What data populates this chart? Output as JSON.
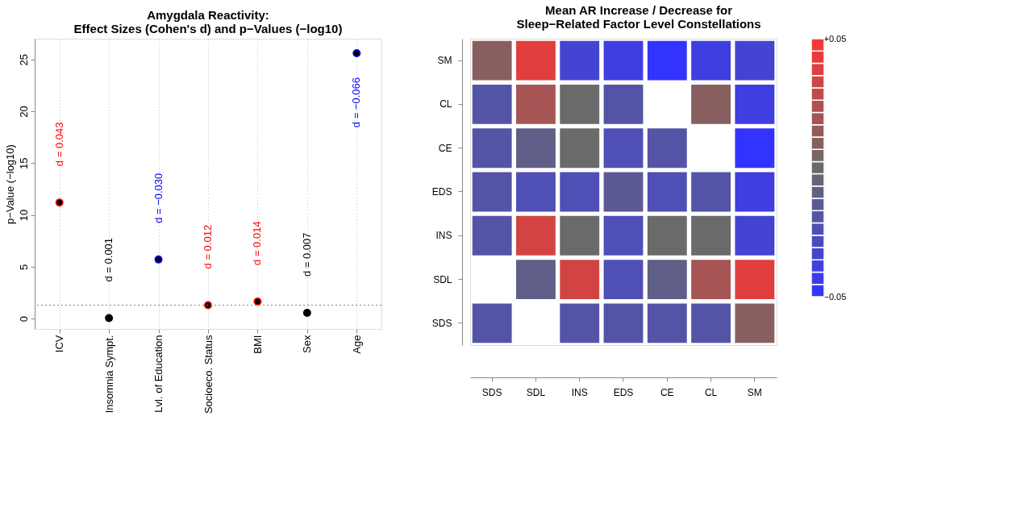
{
  "chart_data": [
    {
      "type": "scatter",
      "title": "Amygdala Reactivity:\nEffect Sizes (Cohen's d) and p−Values (−log10)",
      "ylabel": "p−Value (−log10)",
      "categories": [
        "ICV",
        "Insomnia Sympt.",
        "Lvl. of Education",
        "Socioeco. Status",
        "BMI",
        "Sex",
        "Age"
      ],
      "values": [
        11.2,
        0.05,
        5.7,
        1.3,
        1.65,
        0.55,
        25.6
      ],
      "colors": [
        "#ff0000",
        "#000000",
        "#0000ff",
        "#ff0000",
        "#ff0000",
        "#000000",
        "#0000ff"
      ],
      "ylim": [
        -1,
        27
      ],
      "yticks": [
        0,
        5,
        10,
        15,
        20,
        25
      ],
      "grid": "x",
      "marker": "circle",
      "ref_lines": [
        {
          "axis": "y",
          "value": 1.3,
          "color": "#808080",
          "line_style": "dotted"
        }
      ],
      "annotations": [
        "d =  0.043",
        "d =  0.001",
        "d =  −0.030",
        "d =  0.012",
        "d =  0.014",
        "d =  0.007",
        "d =  −0.066"
      ]
    },
    {
      "type": "heatmap",
      "title": "Mean AR Increase / Decrease for\nSleep−Related Factor Level Constellations",
      "categories": [
        "SDS",
        "SDL",
        "INS",
        "EDS",
        "CE",
        "CL",
        "SM"
      ],
      "y_categories": [
        "SM",
        "CL",
        "CE",
        "EDS",
        "INS",
        "SDL",
        "SDS"
      ],
      "cells": [
        [
          0.01,
          0.04,
          -0.035,
          -0.04,
          -0.05,
          -0.04,
          -0.035
        ],
        [
          -0.02,
          0.02,
          0,
          -0.02,
          null,
          0.01,
          -0.04
        ],
        [
          -0.02,
          -0.01,
          0,
          -0.025,
          -0.02,
          null,
          -0.05
        ],
        [
          -0.02,
          -0.025,
          -0.025,
          -0.015,
          -0.025,
          -0.02,
          -0.04
        ],
        [
          -0.02,
          0.035,
          0,
          -0.025,
          0,
          0,
          -0.035
        ],
        [
          null,
          -0.01,
          0.035,
          -0.025,
          -0.01,
          0.02,
          0.04
        ],
        [
          -0.02,
          null,
          -0.02,
          -0.02,
          -0.02,
          -0.02,
          0.01
        ]
      ],
      "clim": [
        -0.05,
        0.05
      ],
      "cticks": [
        {
          "value": 0.05,
          "label": "+0.05"
        },
        {
          "value": -0.05,
          "label": "−0.05"
        }
      ]
    }
  ]
}
